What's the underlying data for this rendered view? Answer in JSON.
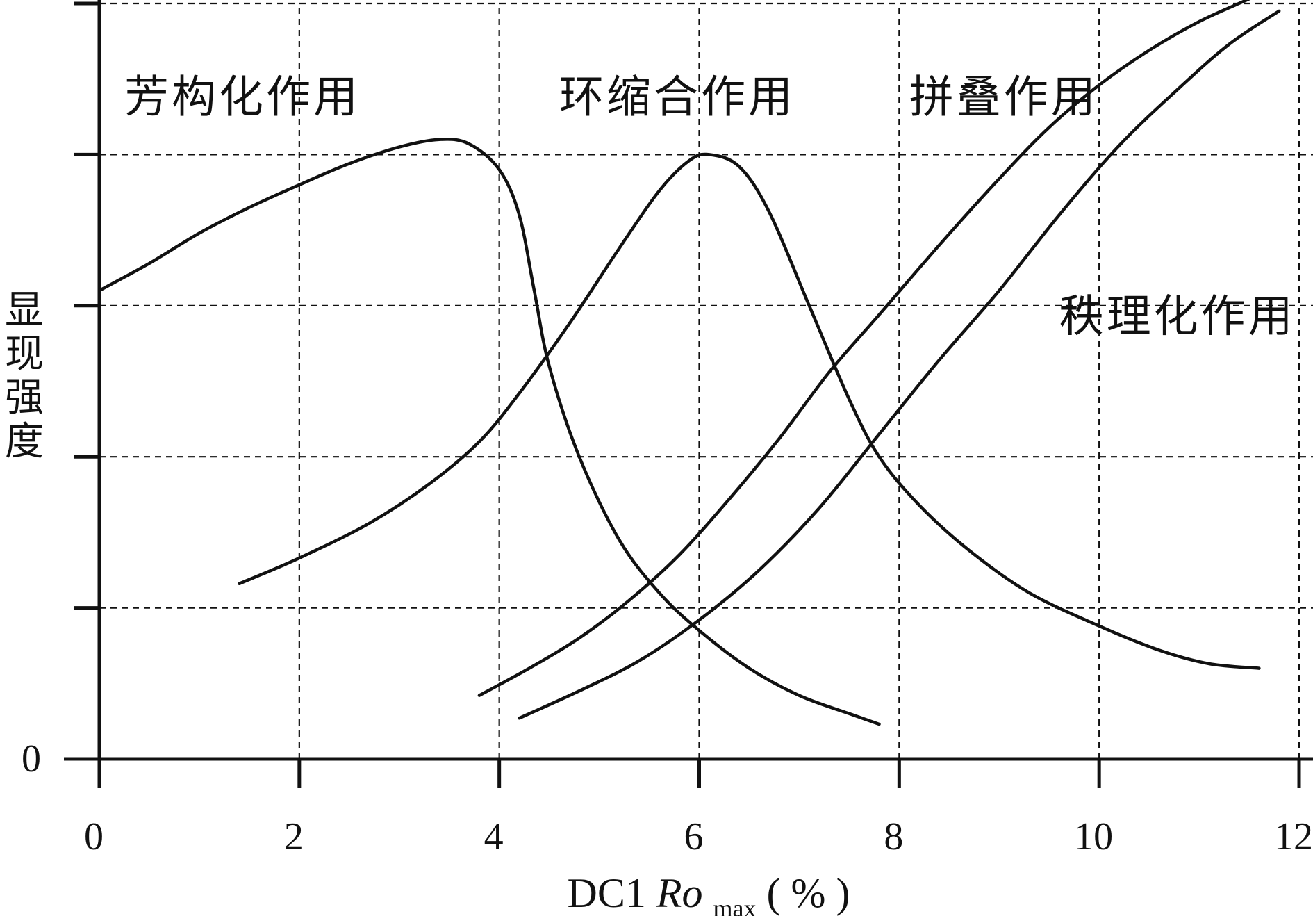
{
  "chart_data": {
    "type": "line",
    "title": "",
    "xlabel": {
      "prefix": "DC1 ",
      "symbol": "Ro",
      "subscript": "max",
      "unit": "( % )"
    },
    "ylabel": "显现强度",
    "xlim": [
      0,
      12
    ],
    "ylim": [
      0,
      5
    ],
    "x_ticks": [
      0,
      2,
      4,
      6,
      8,
      10,
      12
    ],
    "x_tick_labels": [
      "0",
      "2",
      "4",
      "6",
      "8",
      "10",
      "12"
    ],
    "y_ticks": [
      0,
      1,
      2,
      3,
      4,
      5
    ],
    "y_tick_labels": [
      "0"
    ],
    "grid": true,
    "series": [
      {
        "name": "芳构化作用",
        "points": [
          [
            0,
            3.1
          ],
          [
            0.5,
            3.28
          ],
          [
            1,
            3.48
          ],
          [
            1.5,
            3.65
          ],
          [
            2,
            3.8
          ],
          [
            2.5,
            3.94
          ],
          [
            3,
            4.05
          ],
          [
            3.4,
            4.1
          ],
          [
            3.7,
            4.07
          ],
          [
            4,
            3.9
          ],
          [
            4.2,
            3.6
          ],
          [
            4.35,
            3.1
          ],
          [
            4.5,
            2.6
          ],
          [
            4.8,
            2.0
          ],
          [
            5.2,
            1.45
          ],
          [
            5.6,
            1.1
          ],
          [
            6,
            0.85
          ],
          [
            6.5,
            0.6
          ],
          [
            7,
            0.42
          ],
          [
            7.5,
            0.3
          ],
          [
            7.8,
            0.23
          ]
        ]
      },
      {
        "name": "环缩合作用",
        "points": [
          [
            1.4,
            1.16
          ],
          [
            2,
            1.33
          ],
          [
            2.7,
            1.56
          ],
          [
            3.3,
            1.82
          ],
          [
            3.8,
            2.1
          ],
          [
            4.2,
            2.42
          ],
          [
            4.7,
            2.88
          ],
          [
            5.2,
            3.38
          ],
          [
            5.6,
            3.76
          ],
          [
            5.9,
            3.96
          ],
          [
            6.1,
            4.0
          ],
          [
            6.4,
            3.92
          ],
          [
            6.7,
            3.62
          ],
          [
            7.1,
            3.0
          ],
          [
            7.5,
            2.38
          ],
          [
            7.8,
            2.0
          ],
          [
            8.2,
            1.68
          ],
          [
            8.7,
            1.38
          ],
          [
            9.3,
            1.1
          ],
          [
            10,
            0.88
          ],
          [
            10.6,
            0.72
          ],
          [
            11.1,
            0.63
          ],
          [
            11.6,
            0.6
          ]
        ]
      },
      {
        "name": "拼叠作用",
        "points": [
          [
            3.8,
            0.42
          ],
          [
            4.3,
            0.6
          ],
          [
            4.8,
            0.8
          ],
          [
            5.3,
            1.05
          ],
          [
            5.8,
            1.35
          ],
          [
            6.3,
            1.72
          ],
          [
            6.8,
            2.12
          ],
          [
            7.3,
            2.56
          ],
          [
            7.8,
            2.94
          ],
          [
            8.4,
            3.4
          ],
          [
            9,
            3.84
          ],
          [
            9.5,
            4.18
          ],
          [
            10,
            4.46
          ],
          [
            10.5,
            4.69
          ],
          [
            11,
            4.88
          ],
          [
            11.5,
            5.03
          ],
          [
            11.8,
            5.12
          ]
        ]
      },
      {
        "name": "秩理化作用",
        "points": [
          [
            4.2,
            0.27
          ],
          [
            4.8,
            0.45
          ],
          [
            5.4,
            0.65
          ],
          [
            6,
            0.92
          ],
          [
            6.6,
            1.25
          ],
          [
            7.2,
            1.66
          ],
          [
            7.8,
            2.15
          ],
          [
            8.4,
            2.64
          ],
          [
            9,
            3.1
          ],
          [
            9.6,
            3.6
          ],
          [
            10.2,
            4.06
          ],
          [
            10.8,
            4.44
          ],
          [
            11.3,
            4.73
          ],
          [
            11.8,
            4.95
          ]
        ]
      }
    ]
  }
}
